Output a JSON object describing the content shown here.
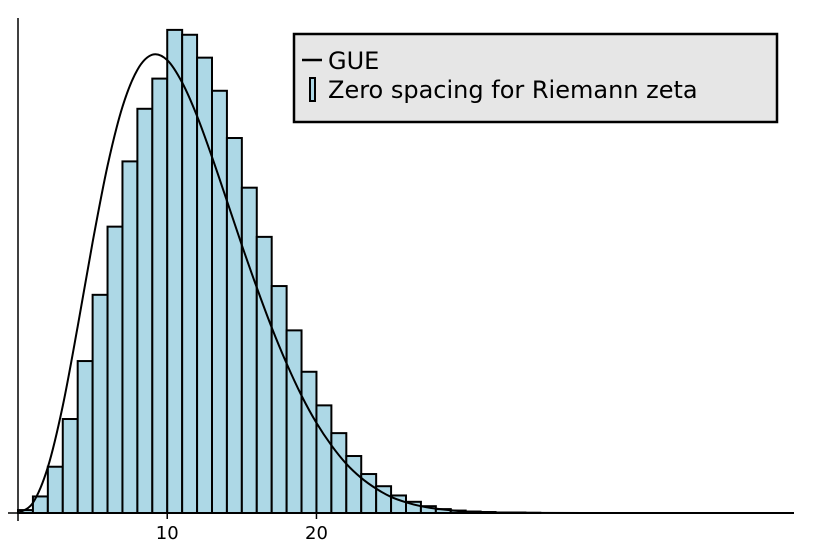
{
  "chart_data": {
    "type": "bar",
    "title": "",
    "xlabel": "",
    "ylabel": "",
    "xlim": [
      0,
      52
    ],
    "x_ticks": [
      {
        "value": 10,
        "label": "10"
      },
      {
        "value": 20,
        "label": "20"
      }
    ],
    "y_ticks": [],
    "grid": false,
    "legend_position": "top-right",
    "bar_color": "#add8e6",
    "line_color": "#000000",
    "series": [
      {
        "name": "Zero spacing for Riemann zeta",
        "type": "histogram",
        "bin_width": 1,
        "bins_start": 0,
        "values": [
          0.0006,
          0.0034,
          0.0095,
          0.0193,
          0.0312,
          0.0448,
          0.0588,
          0.0722,
          0.083,
          0.0892,
          0.0992,
          0.0982,
          0.0935,
          0.0867,
          0.077,
          0.0668,
          0.0567,
          0.0466,
          0.0375,
          0.029,
          0.0221,
          0.0164,
          0.0117,
          0.008,
          0.0055,
          0.0036,
          0.0023,
          0.0014,
          0.0008,
          0.0005,
          0.0003,
          0.0002,
          0.0001,
          0.0001,
          5e-05
        ]
      },
      {
        "name": "GUE",
        "type": "line",
        "x": [
          0,
          1,
          2,
          3,
          4,
          5,
          6,
          7,
          8,
          9,
          10,
          11,
          12,
          13,
          14,
          15,
          16,
          17,
          18,
          19,
          20,
          21,
          22,
          23,
          24,
          25,
          26,
          27,
          28,
          30,
          32,
          34,
          38,
          44,
          52
        ],
        "values": [
          0.0,
          0.0021,
          0.0094,
          0.022,
          0.0383,
          0.0556,
          0.0713,
          0.0834,
          0.091,
          0.0941,
          0.093,
          0.0884,
          0.0815,
          0.0731,
          0.0641,
          0.055,
          0.0463,
          0.0381,
          0.0307,
          0.0241,
          0.0185,
          0.0139,
          0.0101,
          0.0072,
          0.005,
          0.0033,
          0.0022,
          0.0014,
          0.0009,
          0.0003,
          0.0001,
          3e-05,
          0.0,
          0.0,
          0.0
        ]
      }
    ],
    "ylim": [
      0,
      0.1
    ]
  }
}
